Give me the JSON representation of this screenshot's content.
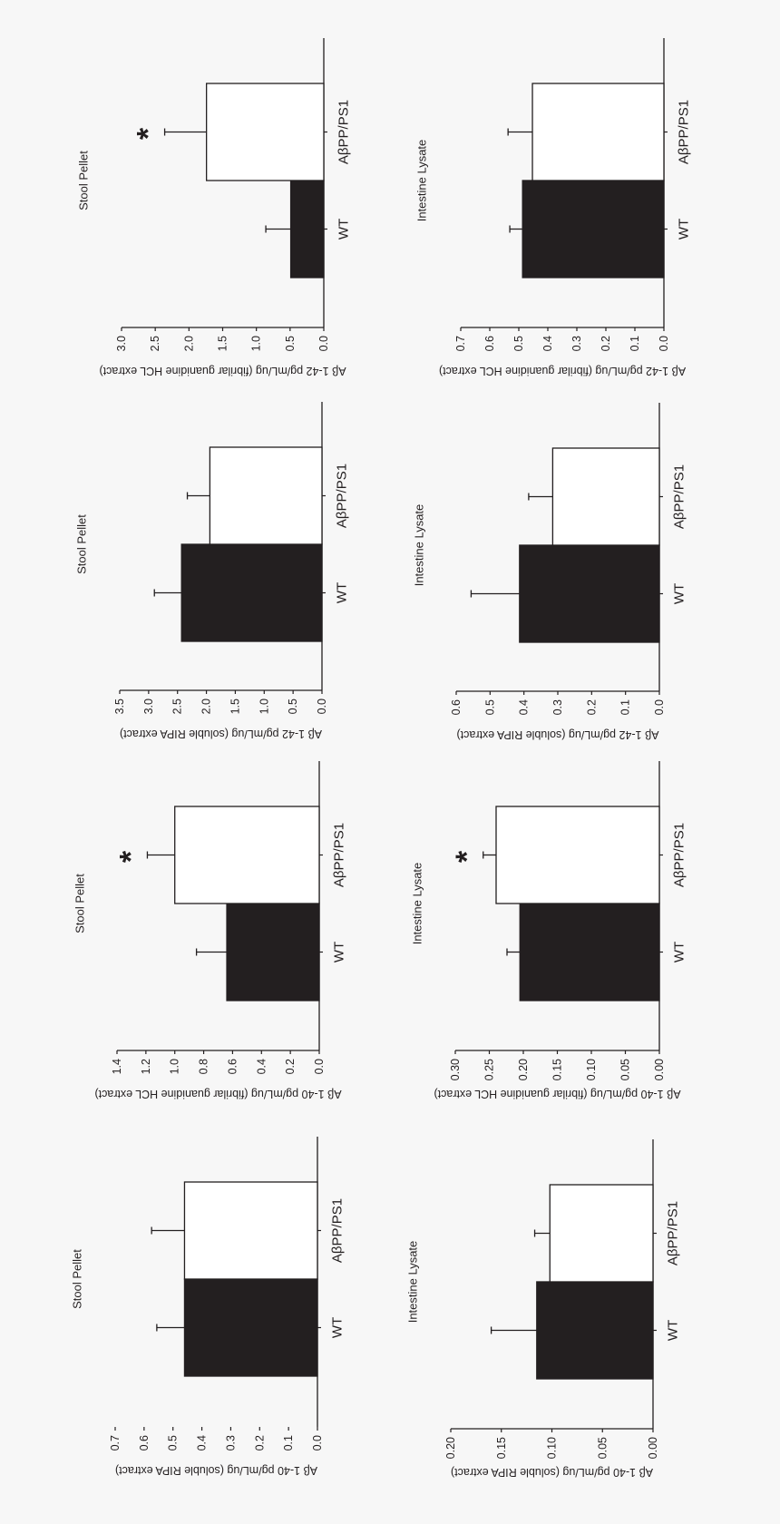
{
  "colors": {
    "background": "#f7f7f7",
    "wt_bar": "#231f20",
    "app_bar": "#ffffff",
    "axis": "#231f20"
  },
  "chart_data": [
    {
      "type": "bar",
      "title": "Stool Pellet",
      "ylabel": "Aβ 1-40 pg/mL/ug (soluble RIPA extract)",
      "categories": [
        "WT",
        "AβPP/PS1"
      ],
      "values": [
        0.46,
        0.46
      ],
      "error_upper": [
        0.556,
        0.574
      ],
      "significant": [
        false,
        false
      ],
      "ylim": [
        0,
        0.7
      ],
      "yticks": [
        "0.0",
        "0.1",
        "0.2",
        "0.3",
        "0.4",
        "0.5",
        "0.6",
        "0.7"
      ]
    },
    {
      "type": "bar",
      "title": "Intestine Lysate",
      "ylabel": "Aβ 1-40 pg/mL/ug (soluble RIPA extract)",
      "categories": [
        "WT",
        "AβPP/PS1"
      ],
      "values": [
        0.115,
        0.102
      ],
      "error_upper": [
        0.16,
        0.117
      ],
      "significant": [
        false,
        false
      ],
      "ylim": [
        0,
        0.2
      ],
      "yticks": [
        "0.00",
        "0.05",
        "0.10",
        "0.15",
        "0.20"
      ]
    },
    {
      "type": "bar",
      "title": "Stool Pellet",
      "ylabel": "Aβ 1-40 pg/mL/ug (fibrilar guanidine HCL extract)",
      "categories": [
        "WT",
        "AβPP/PS1"
      ],
      "values": [
        0.64,
        1.0
      ],
      "error_upper": [
        0.85,
        1.19
      ],
      "significant": [
        false,
        true
      ],
      "significance_symbol": "*",
      "ylim": [
        0,
        1.4
      ],
      "yticks": [
        "0.0",
        "0.2",
        "0.4",
        "0.6",
        "0.8",
        "1.0",
        "1.2",
        "1.4"
      ]
    },
    {
      "type": "bar",
      "title": "Intestine Lysate",
      "ylabel": "Aβ 1-40 pg/mL/ug (fibrilar guanidine HCL extract)",
      "categories": [
        "WT",
        "AβPP/PS1"
      ],
      "values": [
        0.205,
        0.24
      ],
      "error_upper": [
        0.224,
        0.259
      ],
      "significant": [
        false,
        true
      ],
      "significance_symbol": "*",
      "ylim": [
        0,
        0.3
      ],
      "yticks": [
        "0.00",
        "0.05",
        "0.10",
        "0.15",
        "0.20",
        "0.25",
        "0.30"
      ]
    },
    {
      "type": "bar",
      "title": "Stool Pellet",
      "ylabel": "Aβ 1-42 pg/mL/ug (soluble RIPA extract)",
      "categories": [
        "WT",
        "AβPP/PS1"
      ],
      "values": [
        2.43,
        1.94
      ],
      "error_upper": [
        2.9,
        2.33
      ],
      "significant": [
        false,
        false
      ],
      "ylim": [
        0,
        3.5
      ],
      "yticks": [
        "0.0",
        "0.5",
        "1.0",
        "1.5",
        "2.0",
        "2.5",
        "3.0",
        "3.5"
      ]
    },
    {
      "type": "bar",
      "title": "Intestine Lysate",
      "ylabel": "Aβ 1-42 pg/mL/ug (soluble RIPA extract)",
      "categories": [
        "WT",
        "AβPP/PS1"
      ],
      "values": [
        0.413,
        0.315
      ],
      "error_upper": [
        0.556,
        0.386
      ],
      "significant": [
        false,
        false
      ],
      "ylim": [
        0,
        0.6
      ],
      "yticks": [
        "0.0",
        "0.1",
        "0.2",
        "0.3",
        "0.4",
        "0.5",
        "0.6"
      ]
    },
    {
      "type": "bar",
      "title": "Stool Pellet",
      "ylabel": "Aβ 1-42 pg/mL/ug (fibrilar guanidine HCL extract)",
      "categories": [
        "WT",
        "AβPP/PS1"
      ],
      "values": [
        0.49,
        1.74
      ],
      "error_upper": [
        0.86,
        2.36
      ],
      "significant": [
        false,
        true
      ],
      "significance_symbol": "*",
      "ylim": [
        0,
        3.0
      ],
      "yticks": [
        "0.0",
        "0.5",
        "1.0",
        "1.5",
        "2.0",
        "2.5",
        "3.0"
      ]
    },
    {
      "type": "bar",
      "title": "Intestine Lysate",
      "ylabel": "Aβ 1-42 pg/mL/ug (fibrilar guanidine HCL extract)",
      "categories": [
        "WT",
        "AβPP/PS1"
      ],
      "values": [
        0.487,
        0.453
      ],
      "error_upper": [
        0.531,
        0.537
      ],
      "significant": [
        false,
        false
      ],
      "ylim": [
        0,
        0.7
      ],
      "yticks": [
        "0.0",
        "0.1",
        "0.2",
        "0.3",
        "0.4",
        "0.5",
        "0.6",
        "0.7"
      ]
    }
  ]
}
